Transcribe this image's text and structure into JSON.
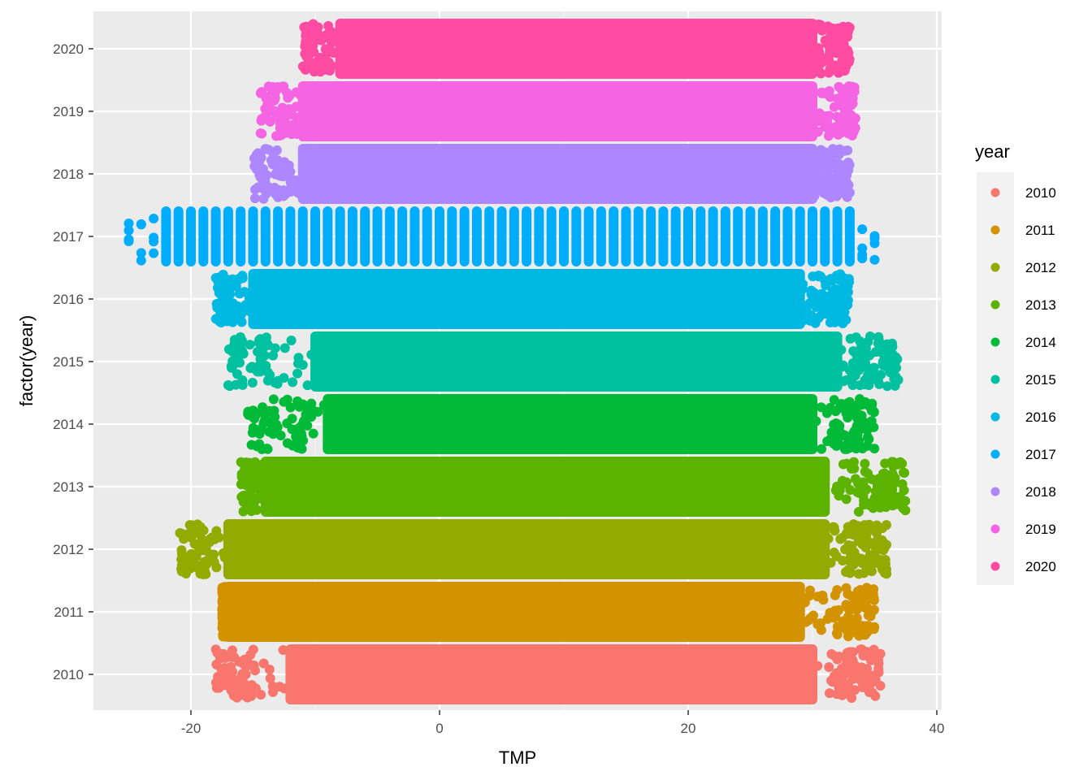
{
  "chart_data": {
    "type": "scatter",
    "title": "",
    "xlabel": "TMP",
    "ylabel": "factor(year)",
    "xlim": [
      -28,
      40
    ],
    "x_ticks": [
      -20,
      0,
      20,
      40
    ],
    "categories": [
      "2010",
      "2011",
      "2012",
      "2013",
      "2014",
      "2015",
      "2016",
      "2017",
      "2018",
      "2019",
      "2020"
    ],
    "legend": {
      "title": "year",
      "placement": "right"
    },
    "grid": true,
    "series": [
      {
        "name": "2010",
        "color": "#F8766D",
        "min": -18,
        "max": 35.5,
        "core_min": -12,
        "core_max": 30
      },
      {
        "name": "2011",
        "color": "#D39200",
        "min": -17.5,
        "max": 35,
        "core_min": -17,
        "core_max": 29
      },
      {
        "name": "2012",
        "color": "#93AA00",
        "min": -21,
        "max": 36,
        "core_min": -17,
        "core_max": 31
      },
      {
        "name": "2013",
        "color": "#5BB300",
        "min": -16,
        "max": 37.5,
        "core_min": -14,
        "core_max": 31
      },
      {
        "name": "2014",
        "color": "#00BA38",
        "min": -15.5,
        "max": 35,
        "core_min": -9,
        "core_max": 30
      },
      {
        "name": "2015",
        "color": "#00C19F",
        "min": -17,
        "max": 37,
        "core_min": -10,
        "core_max": 32
      },
      {
        "name": "2016",
        "color": "#00B9E3",
        "min": -18,
        "max": 33,
        "core_min": -15,
        "core_max": 29
      },
      {
        "name": "2017",
        "color": "#00ADFA",
        "min": -25,
        "max": 35,
        "core_min": -22,
        "core_max": 33,
        "discrete_step": 1
      },
      {
        "name": "2018",
        "color": "#AE87FF",
        "min": -15,
        "max": 33,
        "core_min": -11,
        "core_max": 30
      },
      {
        "name": "2019",
        "color": "#F564E3",
        "min": -14.5,
        "max": 33.5,
        "core_min": -11,
        "core_max": 30
      },
      {
        "name": "2020",
        "color": "#FF4BA1",
        "min": -11,
        "max": 33,
        "core_min": -8,
        "core_max": 30
      }
    ]
  }
}
